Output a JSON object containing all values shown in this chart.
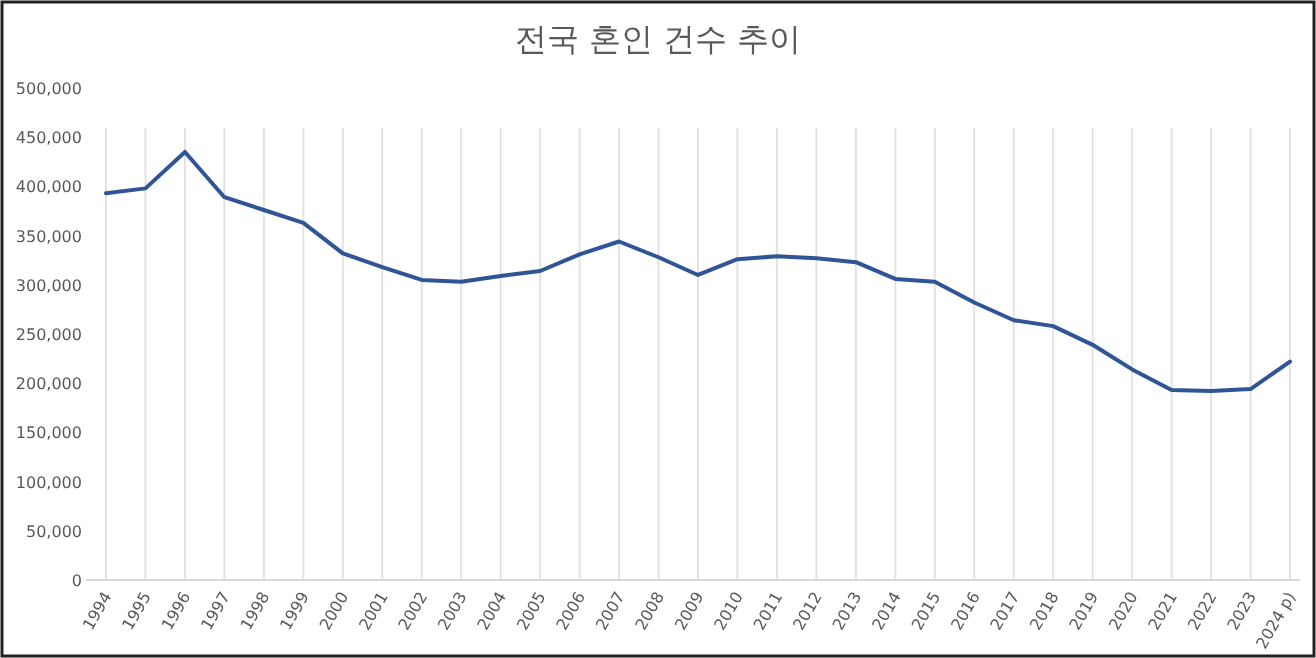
{
  "chart_data": {
    "type": "line",
    "title": "전국 혼인 건수 추이",
    "categories": [
      "1994",
      "1995",
      "1996",
      "1997",
      "1998",
      "1999",
      "2000",
      "2001",
      "2002",
      "2003",
      "2004",
      "2005",
      "2006",
      "2007",
      "2008",
      "2009",
      "2010",
      "2011",
      "2012",
      "2013",
      "2014",
      "2015",
      "2016",
      "2017",
      "2018",
      "2019",
      "2020",
      "2021",
      "2022",
      "2023",
      "2024 p)"
    ],
    "series": [
      {
        "color": "#2f5597",
        "values": [
          393000,
          398000,
          435000,
          389000,
          376000,
          363000,
          332000,
          318000,
          305000,
          303000,
          309000,
          314000,
          331000,
          344000,
          328000,
          310000,
          326000,
          329000,
          327000,
          323000,
          306000,
          303000,
          282000,
          264000,
          258000,
          239000,
          214000,
          193000,
          192000,
          194000,
          222000
        ]
      }
    ],
    "ylim": [
      0,
      500000
    ],
    "yticks": [
      {
        "value": 0,
        "label": "0"
      },
      {
        "value": 50000,
        "label": "50,000"
      },
      {
        "value": 100000,
        "label": "100,000"
      },
      {
        "value": 150000,
        "label": "150,000"
      },
      {
        "value": 200000,
        "label": "200,000"
      },
      {
        "value": 250000,
        "label": "250,000"
      },
      {
        "value": 300000,
        "label": "300,000"
      },
      {
        "value": 350000,
        "label": "350,000"
      },
      {
        "value": 400000,
        "label": "400,000"
      },
      {
        "value": 450000,
        "label": "450,000"
      },
      {
        "value": 500000,
        "label": "500,000"
      }
    ],
    "grid": "x",
    "marker": "none",
    "line_style": "solid"
  }
}
